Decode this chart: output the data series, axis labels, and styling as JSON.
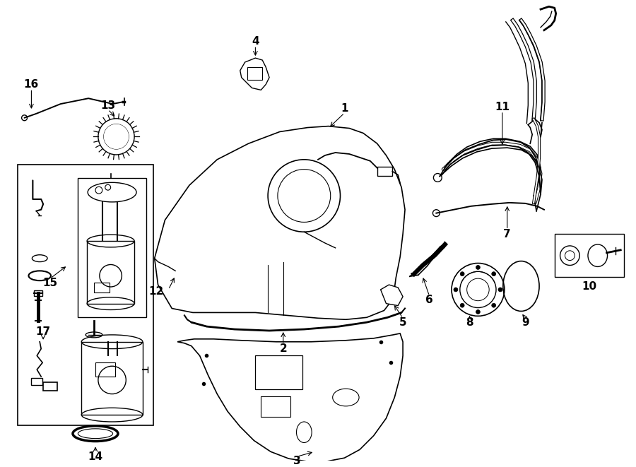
{
  "bg_color": "#ffffff",
  "line_color": "#000000",
  "fig_width": 9.0,
  "fig_height": 6.61,
  "label_fontsize": 11
}
